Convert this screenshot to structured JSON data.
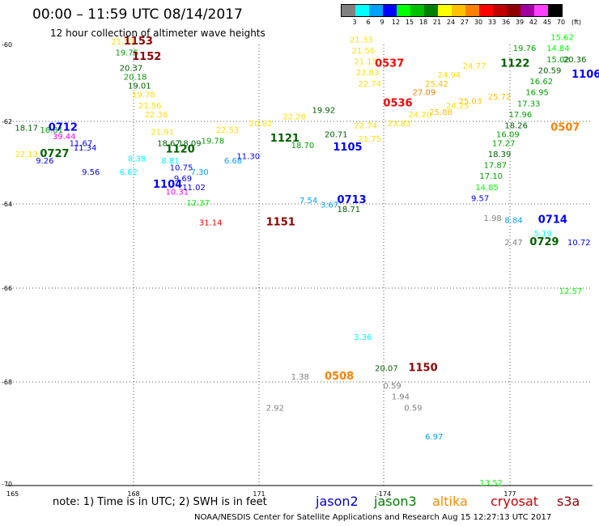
{
  "header": {
    "title": "00:00 – 11:59 UTC 08/14/2017",
    "subtitle": "12 hour collection of altimeter wave heights"
  },
  "colorbar": {
    "unit": "(ft)",
    "levels": [
      "3",
      "6",
      "9",
      "12",
      "15",
      "18",
      "21",
      "24",
      "27",
      "30",
      "33",
      "36",
      "39",
      "42",
      "45",
      "70"
    ],
    "colors": [
      "#808080",
      "#00ffff",
      "#00a0ff",
      "#0000ff",
      "#00ff00",
      "#00c000",
      "#008000",
      "#ffff00",
      "#ffc000",
      "#ff8000",
      "#ff0000",
      "#c00000",
      "#900000",
      "#a000a0",
      "#ff40ff",
      "#000000"
    ]
  },
  "chart_data": {
    "type": "scatter",
    "xlim": [
      165,
      179
    ],
    "ylim": [
      -70,
      -60
    ],
    "x_ticks": [
      "165",
      "168",
      "171",
      "-174",
      "177"
    ],
    "y_ticks": [
      "-60",
      "-62",
      "-64",
      "-66",
      "-68",
      "-70"
    ],
    "grid": true,
    "points": [
      {
        "lon": 167.5,
        "lat": -60.0,
        "value": "21.53",
        "color": "#ffe000"
      },
      {
        "lon": 167.6,
        "lat": -60.25,
        "value": "19.75",
        "color": "#00a000"
      },
      {
        "lon": 167.7,
        "lat": -60.6,
        "value": "20.37",
        "color": "#006000"
      },
      {
        "lon": 167.8,
        "lat": -60.8,
        "value": "20.18",
        "color": "#00a000"
      },
      {
        "lon": 167.9,
        "lat": -61.0,
        "value": "19.01",
        "color": "#006000"
      },
      {
        "lon": 168.0,
        "lat": -61.2,
        "value": "19.78",
        "color": "#ffe000"
      },
      {
        "lon": 168.15,
        "lat": -61.45,
        "value": "21.56",
        "color": "#ffe000"
      },
      {
        "lon": 168.3,
        "lat": -61.65,
        "value": "22.36",
        "color": "#ffe000"
      },
      {
        "lon": 168.45,
        "lat": -62.05,
        "value": "21.91",
        "color": "#ffe000"
      },
      {
        "lon": 168.6,
        "lat": -62.3,
        "value": "18.67",
        "color": "#006000"
      },
      {
        "lon": 169.1,
        "lat": -62.3,
        "value": "18.09",
        "color": "#006000"
      },
      {
        "lon": 169.65,
        "lat": -62.25,
        "value": "19.78",
        "color": "#00a000"
      },
      {
        "lon": 168.9,
        "lat": -62.85,
        "value": "10.75",
        "color": "#0000ff"
      },
      {
        "lon": 168.8,
        "lat": -63.4,
        "value": "10.31",
        "color": "#ff00ff"
      },
      {
        "lon": 169.0,
        "lat": -63.1,
        "value": "9.69",
        "color": "#0000ff"
      },
      {
        "lon": 169.2,
        "lat": -63.3,
        "value": "11.02",
        "color": "#0000ff"
      },
      {
        "lon": 169.3,
        "lat": -63.65,
        "value": "12.37",
        "color": "#00ff00"
      },
      {
        "lon": 169.4,
        "lat": -62.95,
        "value": "7.30",
        "color": "#00a0ff"
      },
      {
        "lon": 170.2,
        "lat": -62.7,
        "value": "6.68",
        "color": "#00a0ff"
      },
      {
        "lon": 170.5,
        "lat": -62.6,
        "value": "11.30",
        "color": "#0000ff"
      },
      {
        "lon": 168.7,
        "lat": -62.7,
        "value": "8.81",
        "color": "#00ffff"
      },
      {
        "lon": 167.9,
        "lat": -62.65,
        "value": "8.38",
        "color": "#00ffff"
      },
      {
        "lon": 167.7,
        "lat": -62.95,
        "value": "6.62",
        "color": "#00ffff"
      },
      {
        "lon": 166.6,
        "lat": -62.4,
        "value": "11.34",
        "color": "#0000ff"
      },
      {
        "lon": 166.8,
        "lat": -62.95,
        "value": "9.56",
        "color": "#0000ff"
      },
      {
        "lon": 170.0,
        "lat": -62.0,
        "value": "22.53",
        "color": "#ffe000"
      },
      {
        "lon": 170.8,
        "lat": -61.85,
        "value": "20.82",
        "color": "#ffe000"
      },
      {
        "lon": 171.6,
        "lat": -61.7,
        "value": "22.20",
        "color": "#ffe000"
      },
      {
        "lon": 171.8,
        "lat": -62.35,
        "value": "18.70",
        "color": "#00a000"
      },
      {
        "lon": 172.3,
        "lat": -61.55,
        "value": "19.92",
        "color": "#006000"
      },
      {
        "lon": 172.6,
        "lat": -62.1,
        "value": "20.71",
        "color": "#006000"
      },
      {
        "lon": 173.3,
        "lat": -61.9,
        "value": "22.74",
        "color": "#ffe000"
      },
      {
        "lon": 173.4,
        "lat": -62.2,
        "value": "21.75",
        "color": "#ffe000"
      },
      {
        "lon": 174.1,
        "lat": -61.85,
        "value": "23.83",
        "color": "#ffe000"
      },
      {
        "lon": 174.6,
        "lat": -61.65,
        "value": "24.20",
        "color": "#ffe000"
      },
      {
        "lon": 173.2,
        "lat": -59.95,
        "value": "21.33",
        "color": "#ffe000"
      },
      {
        "lon": 173.25,
        "lat": -60.2,
        "value": "21.56",
        "color": "#ffe000"
      },
      {
        "lon": 173.3,
        "lat": -60.45,
        "value": "21.15",
        "color": "#ffe000"
      },
      {
        "lon": 173.35,
        "lat": -60.7,
        "value": "23.83",
        "color": "#ffe000"
      },
      {
        "lon": 173.4,
        "lat": -60.95,
        "value": "22.74",
        "color": "#ffe000"
      },
      {
        "lon": 174.7,
        "lat": -61.15,
        "value": "27.09",
        "color": "#ff8000"
      },
      {
        "lon": 175.0,
        "lat": -60.95,
        "value": "25.42",
        "color": "#ffc000"
      },
      {
        "lon": 175.3,
        "lat": -60.75,
        "value": "24.94",
        "color": "#ffe000"
      },
      {
        "lon": 175.9,
        "lat": -60.55,
        "value": "24.77",
        "color": "#ffe000"
      },
      {
        "lon": 175.1,
        "lat": -61.6,
        "value": "25.88",
        "color": "#ffc000"
      },
      {
        "lon": 175.5,
        "lat": -61.45,
        "value": "24.25",
        "color": "#ffe000"
      },
      {
        "lon": 175.8,
        "lat": -61.35,
        "value": "25.03",
        "color": "#ffc000"
      },
      {
        "lon": 176.5,
        "lat": -61.25,
        "value": "25.72",
        "color": "#ffc000"
      },
      {
        "lon": 177.1,
        "lat": -60.15,
        "value": "19.76",
        "color": "#00a000"
      },
      {
        "lon": 178.0,
        "lat": -59.9,
        "value": "15.62",
        "color": "#00ff00"
      },
      {
        "lon": 177.9,
        "lat": -60.15,
        "value": "14.84",
        "color": "#00ff00"
      },
      {
        "lon": 177.9,
        "lat": -60.4,
        "value": "15.02",
        "color": "#00a000"
      },
      {
        "lon": 178.3,
        "lat": -60.4,
        "value": "20.36",
        "color": "#006000"
      },
      {
        "lon": 177.7,
        "lat": -60.65,
        "value": "20.59",
        "color": "#006000"
      },
      {
        "lon": 177.5,
        "lat": -60.9,
        "value": "16.62",
        "color": "#00a000"
      },
      {
        "lon": 177.4,
        "lat": -61.15,
        "value": "16.95",
        "color": "#00a000"
      },
      {
        "lon": 177.2,
        "lat": -61.4,
        "value": "17.33",
        "color": "#00a000"
      },
      {
        "lon": 177.0,
        "lat": -61.65,
        "value": "17.96",
        "color": "#00a000"
      },
      {
        "lon": 176.9,
        "lat": -61.9,
        "value": "18.26",
        "color": "#006000"
      },
      {
        "lon": 176.7,
        "lat": -62.1,
        "value": "16.09",
        "color": "#00a000"
      },
      {
        "lon": 176.6,
        "lat": -62.3,
        "value": "17.27",
        "color": "#00a000"
      },
      {
        "lon": 176.5,
        "lat": -62.55,
        "value": "18.39",
        "color": "#006000"
      },
      {
        "lon": 176.4,
        "lat": -62.8,
        "value": "17.87",
        "color": "#00a000"
      },
      {
        "lon": 176.3,
        "lat": -63.05,
        "value": "17.10",
        "color": "#00a000"
      },
      {
        "lon": 176.2,
        "lat": -63.3,
        "value": "14.85",
        "color": "#00ff00"
      },
      {
        "lon": 176.1,
        "lat": -63.55,
        "value": "9.57",
        "color": "#0000ff"
      },
      {
        "lon": 176.4,
        "lat": -64.0,
        "value": "1.98",
        "color": "#808080"
      },
      {
        "lon": 176.9,
        "lat": -64.05,
        "value": "8.84",
        "color": "#00a0ff"
      },
      {
        "lon": 177.6,
        "lat": -64.35,
        "value": "5.19",
        "color": "#00ffff"
      },
      {
        "lon": 176.9,
        "lat": -64.55,
        "value": "2.47",
        "color": "#808080"
      },
      {
        "lon": 178.4,
        "lat": -64.55,
        "value": "10.72",
        "color": "#0000ff"
      },
      {
        "lon": 178.2,
        "lat": -65.65,
        "value": "12.57",
        "color": "#00ff00"
      },
      {
        "lon": 165.2,
        "lat": -61.95,
        "value": "18.17",
        "color": "#006000"
      },
      {
        "lon": 165.8,
        "lat": -62.0,
        "value": "16.81",
        "color": "#00a000"
      },
      {
        "lon": 166.1,
        "lat": -62.15,
        "value": "39.44",
        "color": "#ff00ff"
      },
      {
        "lon": 166.5,
        "lat": -62.3,
        "value": "11.67",
        "color": "#0000ff"
      },
      {
        "lon": 165.2,
        "lat": -62.55,
        "value": "22.13",
        "color": "#ffe000"
      },
      {
        "lon": 165.7,
        "lat": -62.7,
        "value": "9.26",
        "color": "#0000ff"
      },
      {
        "lon": 172.0,
        "lat": -63.6,
        "value": "7.54",
        "color": "#00a0ff"
      },
      {
        "lon": 172.5,
        "lat": -63.7,
        "value": "3.67",
        "color": "#00a0ff"
      },
      {
        "lon": 172.9,
        "lat": -63.8,
        "value": "18.71",
        "color": "#006000"
      },
      {
        "lon": 169.6,
        "lat": -64.1,
        "value": "31.14",
        "color": "#ff0000"
      },
      {
        "lon": 173.3,
        "lat": -66.7,
        "value": "3.36",
        "color": "#00ffff"
      },
      {
        "lon": 173.8,
        "lat": -67.4,
        "value": "20.07",
        "color": "#006000"
      },
      {
        "lon": 171.8,
        "lat": -67.6,
        "value": "1.38",
        "color": "#808080"
      },
      {
        "lon": 174.0,
        "lat": -67.8,
        "value": "0.59",
        "color": "#808080"
      },
      {
        "lon": 174.2,
        "lat": -68.05,
        "value": "1.94",
        "color": "#808080"
      },
      {
        "lon": 174.5,
        "lat": -68.3,
        "value": "0.59",
        "color": "#808080"
      },
      {
        "lon": 171.2,
        "lat": -68.3,
        "value": "2.92",
        "color": "#808080"
      },
      {
        "lon": 175.0,
        "lat": -68.95,
        "value": "6.97",
        "color": "#00a0ff"
      },
      {
        "lon": 176.3,
        "lat": -70.0,
        "value": "13.52",
        "color": "#00ff00"
      }
    ],
    "pass_labels": [
      {
        "lon": 167.8,
        "lat": -60.0,
        "text": "1153",
        "color": "#900000"
      },
      {
        "lon": 168.0,
        "lat": -60.35,
        "text": "1152",
        "color": "#900000"
      },
      {
        "lon": 166.0,
        "lat": -61.95,
        "text": "0712",
        "color": "#0000ff"
      },
      {
        "lon": 165.8,
        "lat": -62.55,
        "text": "0727",
        "color": "#006000"
      },
      {
        "lon": 168.8,
        "lat": -62.45,
        "text": "1120",
        "color": "#006000"
      },
      {
        "lon": 168.5,
        "lat": -63.25,
        "text": "1104",
        "color": "#0000ff"
      },
      {
        "lon": 171.3,
        "lat": -62.2,
        "text": "1121",
        "color": "#006000"
      },
      {
        "lon": 172.8,
        "lat": -62.4,
        "text": "1105",
        "color": "#0000ff"
      },
      {
        "lon": 172.9,
        "lat": -63.6,
        "text": "0713",
        "color": "#0000ff"
      },
      {
        "lon": 171.2,
        "lat": -64.1,
        "text": "1151",
        "color": "#900000"
      },
      {
        "lon": 173.8,
        "lat": -60.5,
        "text": "0537",
        "color": "#ff0000"
      },
      {
        "lon": 174.0,
        "lat": -61.4,
        "text": "0536",
        "color": "#ff0000"
      },
      {
        "lon": 176.8,
        "lat": -60.5,
        "text": "1122",
        "color": "#006000"
      },
      {
        "lon": 178.5,
        "lat": -60.75,
        "text": "1106",
        "color": "#0000ff"
      },
      {
        "lon": 178.0,
        "lat": -61.95,
        "text": "0507",
        "color": "#ff8000"
      },
      {
        "lon": 177.7,
        "lat": -64.05,
        "text": "0714",
        "color": "#0000ff"
      },
      {
        "lon": 177.5,
        "lat": -64.55,
        "text": "0729",
        "color": "#006000"
      },
      {
        "lon": 172.6,
        "lat": -67.6,
        "text": "0508",
        "color": "#ff8000"
      },
      {
        "lon": 174.6,
        "lat": -67.4,
        "text": "1150",
        "color": "#900000"
      }
    ],
    "yellow_track": [
      [
        168.0,
        -61.2
      ],
      [
        170.3,
        -62.0
      ],
      [
        171.2,
        -61.8
      ],
      [
        172.5,
        -61.5
      ],
      [
        174.0,
        -61.2
      ],
      [
        175.5,
        -60.9
      ],
      [
        176.5,
        -60.6
      ],
      [
        177.4,
        -60.4
      ],
      [
        178.3,
        -60.2
      ]
    ],
    "yellow_track2": [
      [
        173.2,
        -61.9
      ],
      [
        174.5,
        -61.6
      ],
      [
        175.5,
        -61.4
      ],
      [
        176.5,
        -61.2
      ],
      [
        177.3,
        -61.0
      ],
      [
        178.0,
        -60.8
      ]
    ]
  },
  "footer": {
    "note": "note:  1) Time is in UTC;  2) SWH is in feet",
    "satellites": [
      {
        "name": "jason2",
        "color": "#0000cc"
      },
      {
        "name": "jason3",
        "color": "#008000"
      },
      {
        "name": "altika",
        "color": "#ff8c00"
      },
      {
        "name": "cryosat",
        "color": "#cc0000"
      },
      {
        "name": "s3a",
        "color": "#900000"
      }
    ],
    "credit": "NOAA/NESDIS Center for Satellite Applications and Research    Aug 15 12:27:13 UTC 2017"
  }
}
